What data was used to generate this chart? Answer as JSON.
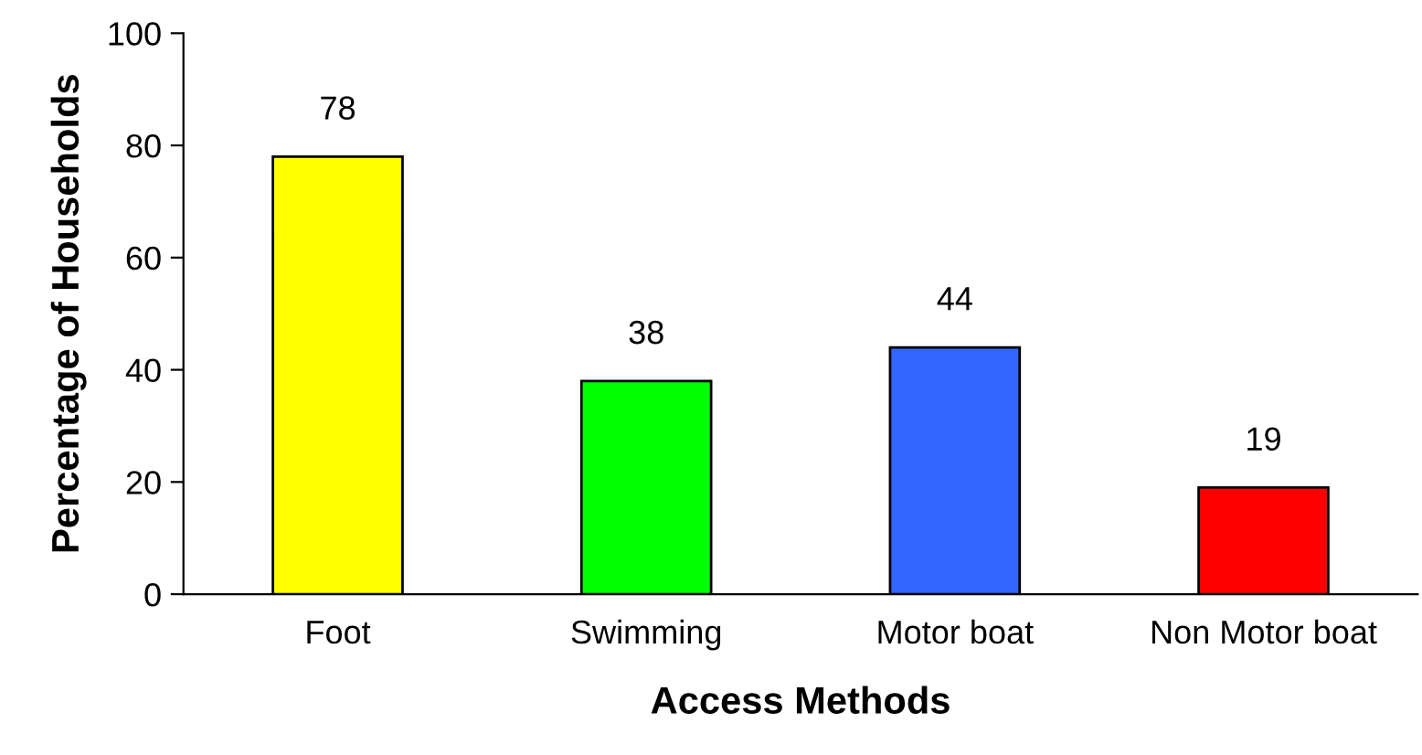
{
  "chart_data": {
    "type": "bar",
    "xlabel": "Access Methods",
    "ylabel": "Percentage of Households",
    "categories": [
      "Foot",
      "Swimming",
      "Motor boat",
      "Non Motor boat"
    ],
    "values": [
      78,
      38,
      44,
      19
    ],
    "colors": [
      "#ffff00",
      "#00ff00",
      "#3366ff",
      "#ff0000"
    ],
    "ylim": [
      0,
      100
    ],
    "yticks": [
      0,
      20,
      40,
      60,
      80,
      100
    ],
    "grid": false,
    "legend": false,
    "data_labels": true
  }
}
